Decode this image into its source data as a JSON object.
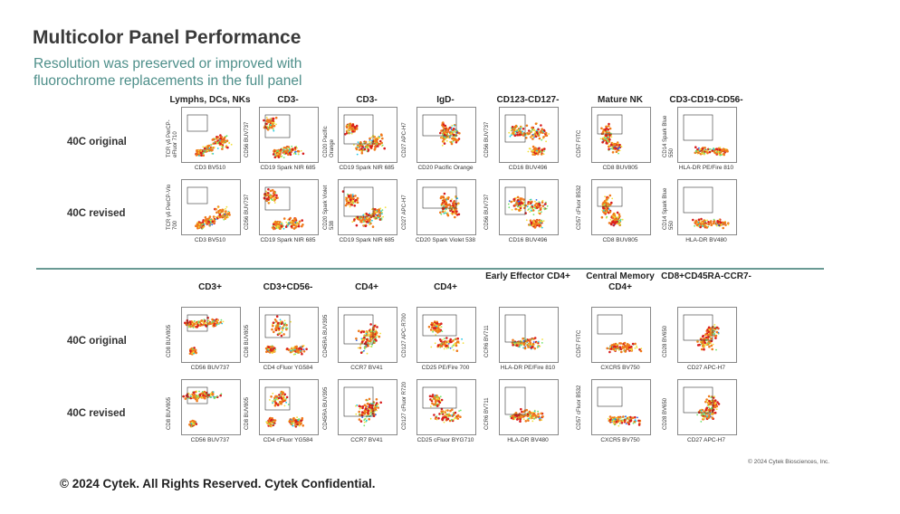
{
  "header": {
    "title": "Multicolor Panel Performance",
    "subtitle_line1": "Resolution was preserved or improved with",
    "subtitle_line2": "fluorochrome replacements in the full panel"
  },
  "rows": {
    "original": "40C original",
    "revised": "40C revised"
  },
  "top_columns": [
    {
      "head": "Lymphs, DCs, NKs",
      "orig_x": "CD3 BV510",
      "orig_y": "TCR γδ PerCP-eFluor 710",
      "rev_x": "CD3 BV510",
      "rev_y": "TCR γδ PerCP-Vio 700"
    },
    {
      "head": "CD3-",
      "orig_x": "CD19 Spark NIR 685",
      "orig_y": "CD56 BUV737",
      "rev_x": "CD19 Spark NIR 685",
      "rev_y": "CD56 BUV737"
    },
    {
      "head": "CD3-",
      "orig_x": "CD19 Spark NIR 685",
      "orig_y": "CD20 Pacific Orange",
      "rev_x": "CD19 Spark NIR 685",
      "rev_y": "CD20 Spark Violet 538"
    },
    {
      "head": "IgD-",
      "orig_x": "CD20 Pacific Orange",
      "orig_y": "CD27 APC-H7",
      "rev_x": "CD20 Spark Violet 538",
      "rev_y": "CD27 APC-H7"
    },
    {
      "head": "CD123-CD127-",
      "orig_x": "CD16 BUV496",
      "orig_y": "CD56 BUV737",
      "rev_x": "CD16 BUV496",
      "rev_y": "CD56 BUV737"
    },
    {
      "head": "Mature NK",
      "orig_x": "CD8 BUV805",
      "orig_y": "CD57 FITC",
      "rev_x": "CD8 BUV805",
      "rev_y": "CD57 cFluor B532"
    },
    {
      "head": "CD3-CD19-CD56-",
      "orig_x": "HLA-DR PE/Fire 810",
      "orig_y": "CD14 Spark Blue 550",
      "rev_x": "HLA-DR BV480",
      "rev_y": "CD14 Spark Blue 550"
    }
  ],
  "bottom_columns": [
    {
      "head": "CD3+",
      "orig_x": "CD56 BUV737",
      "orig_y": "CD8 BUV805",
      "rev_x": "CD56 BUV737",
      "rev_y": "CD8 BUV805"
    },
    {
      "head": "CD3+CD56-",
      "orig_x": "CD4 cFluor YG584",
      "orig_y": "CD8 BUV805",
      "rev_x": "CD4 cFluor YG584",
      "rev_y": "CD8 BUV805"
    },
    {
      "head": "CD4+",
      "orig_x": "CCR7 BV41",
      "orig_y": "CD45RA BUV395",
      "rev_x": "CCR7 BV41",
      "rev_y": "CD45RA BUV395"
    },
    {
      "head": "CD4+",
      "orig_x": "CD25 PE/Fire 700",
      "orig_y": "CD127 APC-R700",
      "rev_x": "CD25 cFluor BYG710",
      "rev_y": "CD127 cFluor R720"
    },
    {
      "head": "Early Effector CD4+",
      "orig_x": "HLA-DR PE/Fire 810",
      "orig_y": "CCR6 BV711",
      "rev_x": "HLA-DR BV480",
      "rev_y": "CCR6 BV711"
    },
    {
      "head": "Central Memory CD4+",
      "orig_x": "CXCR5 BV750",
      "orig_y": "CD57 FITC",
      "rev_x": "CXCR5 BV750",
      "rev_y": "CD57 cFluor B532"
    },
    {
      "head": "CD8+CD45RA-CCR7-",
      "orig_x": "CD27 APC-H7",
      "orig_y": "CD28 BV650",
      "rev_x": "CD27 APC-H7",
      "rev_y": "CD28 BV650"
    }
  ],
  "credit": "© 2024 Cytek Biosciences, Inc.",
  "footer": "© 2024 Cytek. All Rights Reserved. Cytek Confidential.",
  "colors": {
    "accent": "#4e8f8a",
    "divider": "#6a9a94"
  }
}
